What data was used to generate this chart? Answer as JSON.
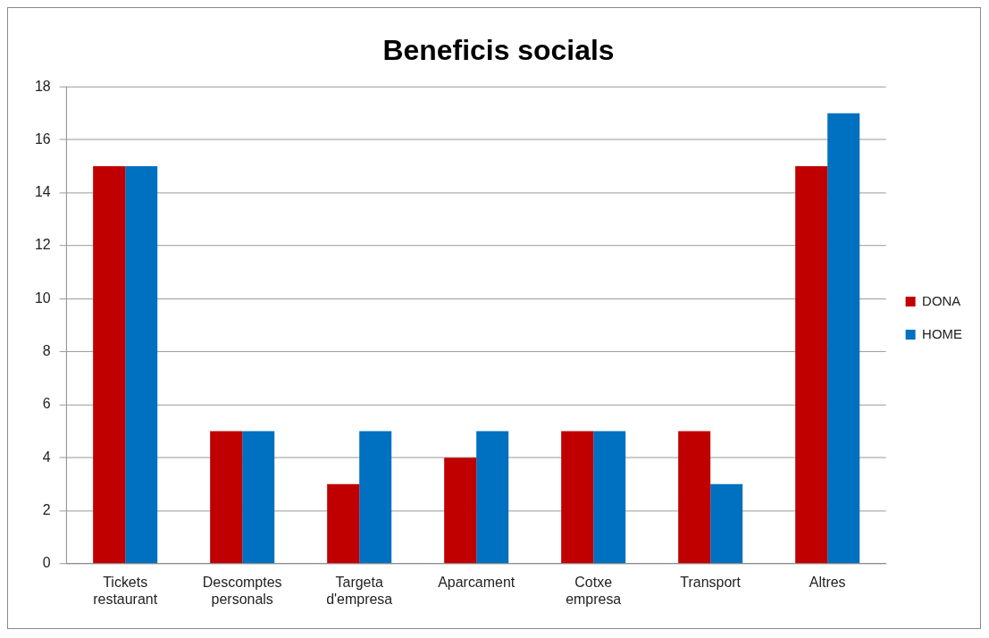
{
  "chart_data": {
    "type": "bar",
    "title": "Beneficis socials",
    "categories": [
      "Tickets restaurant",
      "Descomptes personals",
      "Targeta d'empresa",
      "Aparcament",
      "Cotxe empresa",
      "Transport",
      "Altres"
    ],
    "series": [
      {
        "name": "DONA",
        "color": "#c00000",
        "values": [
          15,
          5,
          3,
          4,
          5,
          5,
          15
        ]
      },
      {
        "name": "HOME",
        "color": "#0070c0",
        "values": [
          15,
          5,
          5,
          5,
          5,
          3,
          17
        ]
      }
    ],
    "ylim": [
      0,
      18
    ],
    "yticks": [
      0,
      2,
      4,
      6,
      8,
      10,
      12,
      14,
      16,
      18
    ],
    "grid": "y",
    "legend": "right"
  }
}
